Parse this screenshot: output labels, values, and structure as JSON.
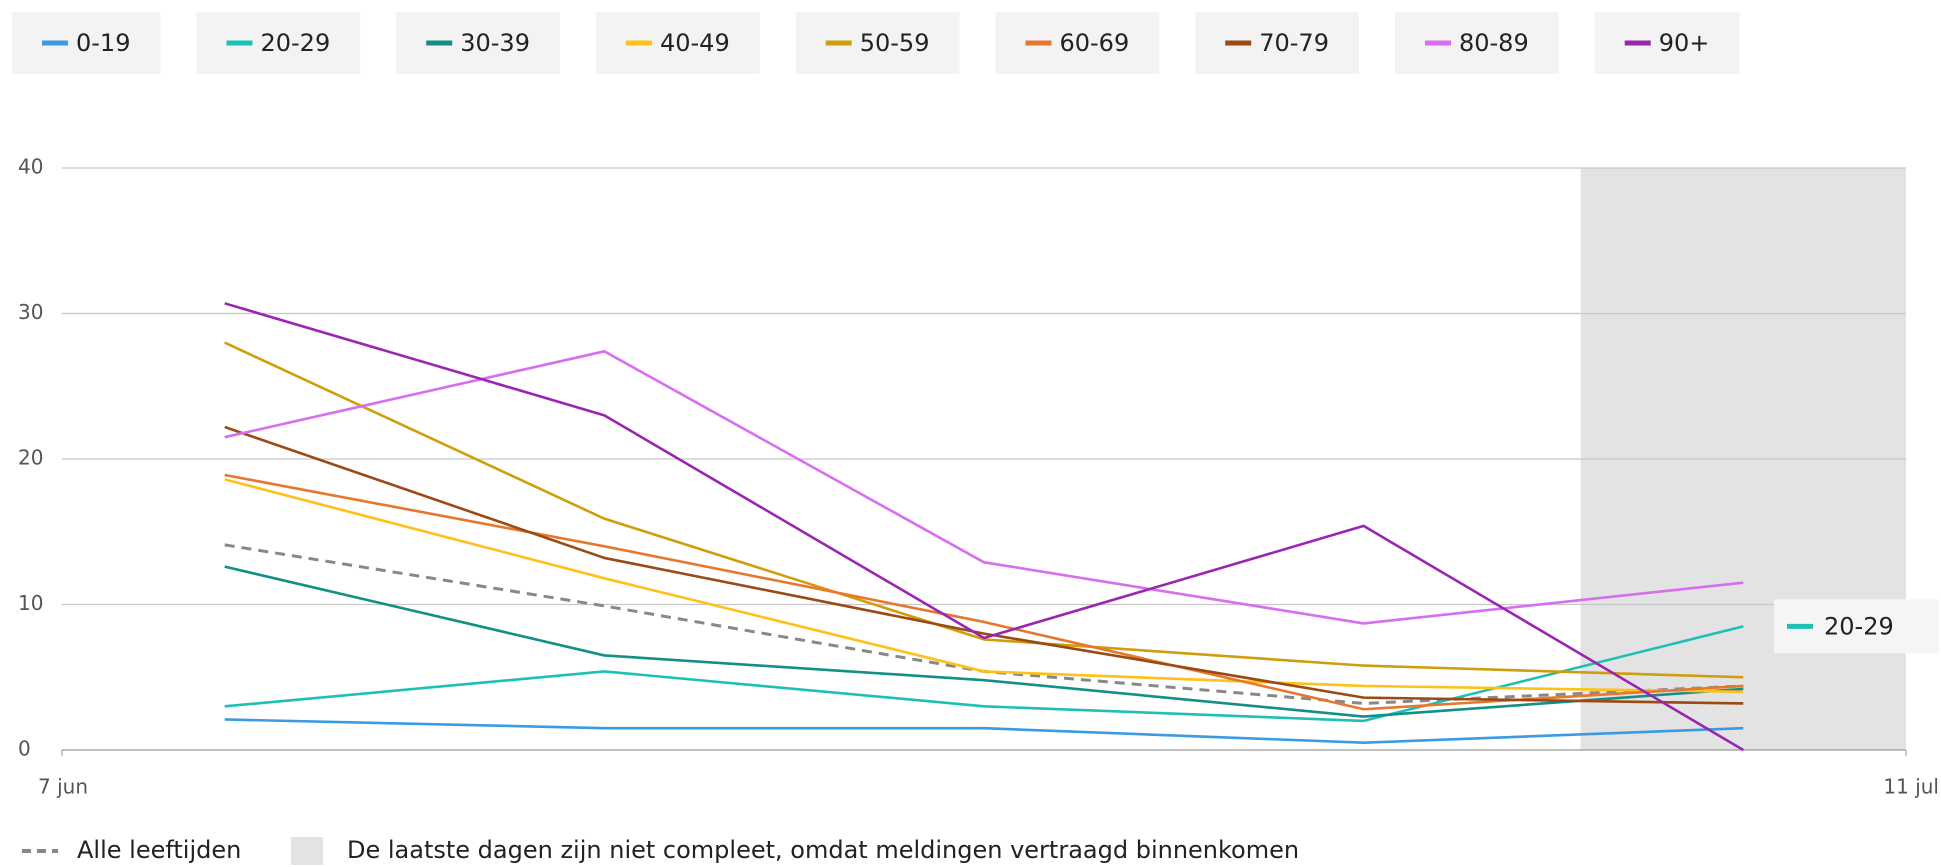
{
  "chart_data": {
    "type": "line",
    "x": [
      3,
      10,
      17,
      24,
      31
    ],
    "xlim": [
      0,
      34
    ],
    "xticks": [
      {
        "value": 0,
        "label": "7 jun"
      },
      {
        "value": 34,
        "label": "11 jul"
      }
    ],
    "ylim": [
      0,
      40
    ],
    "yticks": [
      0,
      10,
      20,
      30,
      40
    ],
    "grid": true,
    "series": [
      {
        "name": "0-19",
        "color": "#3a9be3",
        "values": [
          2.1,
          1.5,
          1.5,
          0.5,
          1.5
        ]
      },
      {
        "name": "20-29",
        "color": "#1ec0b6",
        "values": [
          3.0,
          5.4,
          3.0,
          2.0,
          8.5
        ]
      },
      {
        "name": "30-39",
        "color": "#148f87",
        "values": [
          12.6,
          6.5,
          4.8,
          2.3,
          4.2
        ]
      },
      {
        "name": "40-49",
        "color": "#ffc117",
        "values": [
          18.6,
          11.8,
          5.4,
          4.4,
          4.0
        ]
      },
      {
        "name": "50-59",
        "color": "#d09d0c",
        "values": [
          28.0,
          15.9,
          7.6,
          5.8,
          5.0
        ]
      },
      {
        "name": "60-69",
        "color": "#e8772e",
        "values": [
          18.9,
          14.0,
          8.8,
          2.8,
          4.4
        ]
      },
      {
        "name": "70-79",
        "color": "#9a4a12",
        "values": [
          22.2,
          13.2,
          8.0,
          3.6,
          3.2
        ]
      },
      {
        "name": "80-89",
        "color": "#d96df0",
        "values": [
          21.5,
          27.4,
          12.9,
          8.7,
          11.5
        ]
      },
      {
        "name": "90+",
        "color": "#9a25b0",
        "values": [
          30.7,
          23.0,
          7.7,
          15.4,
          0
        ]
      },
      {
        "name": "Alle leeftijden",
        "color": "#888888",
        "dashed": true,
        "values": [
          14.1,
          9.9,
          5.4,
          3.2,
          4.4
        ]
      }
    ],
    "highlight": 1,
    "shaded_region": [
      28,
      34
    ],
    "shaded_note": "De laatste dagen zijn niet compleet, omdat meldingen vertraagd binnenkomen"
  }
}
